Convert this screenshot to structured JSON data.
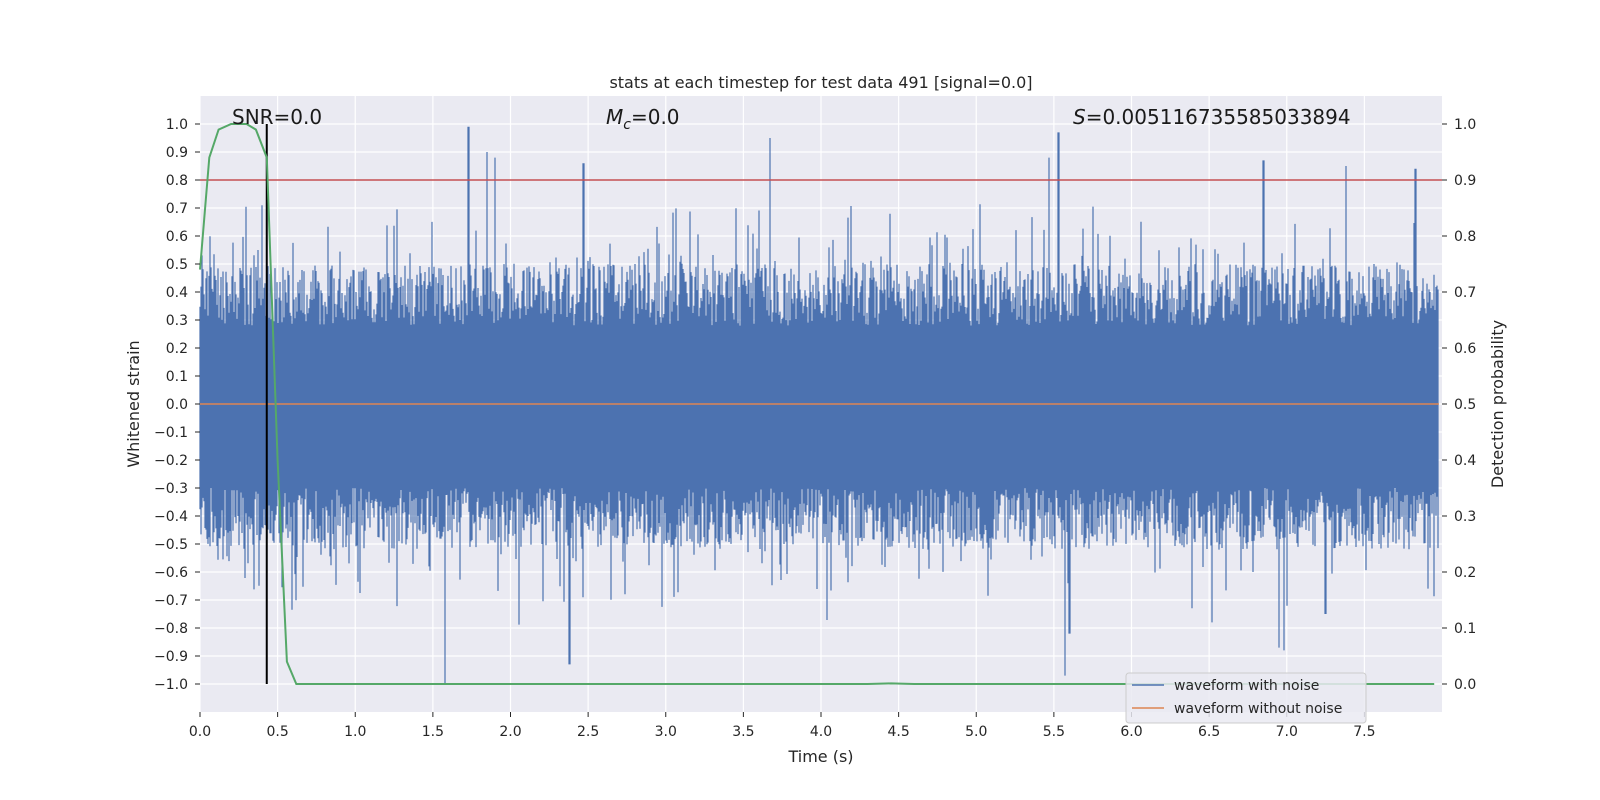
{
  "chart_data": {
    "type": "line",
    "title": "stats at each timestep for test data 491 [signal=0.0]",
    "xlabel": "Time (s)",
    "ylabel_left": "Whitened strain",
    "ylabel_right": "Detection probability",
    "xlim": [
      0.0,
      8.0
    ],
    "ylim_left": [
      -1.1,
      1.1
    ],
    "ylim_right": [
      -0.05,
      1.05
    ],
    "x_ticks": [
      "0.0",
      "0.5",
      "1.0",
      "1.5",
      "2.0",
      "2.5",
      "3.0",
      "3.5",
      "4.0",
      "4.5",
      "5.0",
      "5.5",
      "6.0",
      "6.5",
      "7.0",
      "7.5"
    ],
    "y_left_ticks": [
      "1.0",
      "0.9",
      "0.8",
      "0.7",
      "0.6",
      "0.5",
      "0.4",
      "0.3",
      "0.2",
      "0.1",
      "0.0",
      "−0.1",
      "−0.2",
      "−0.3",
      "−0.4",
      "−0.5",
      "−0.6",
      "−0.7",
      "−0.8",
      "−0.9",
      "−1.0"
    ],
    "y_right_ticks": [
      "1.0",
      "0.9",
      "0.8",
      "0.7",
      "0.6",
      "0.5",
      "0.4",
      "0.3",
      "0.2",
      "0.1",
      "0.0"
    ],
    "annotations": {
      "snr": "SNR=0.0",
      "mc_symbol": "M",
      "mc_sub": "c",
      "mc_value": "=0.0",
      "s_symbol": "S",
      "s_value": "=0.005116735585033894"
    },
    "threshold_line": {
      "y_right": 0.9,
      "color": "#c44e52"
    },
    "marker_line": {
      "x": 0.43,
      "y_from": -1.0,
      "y_to": 1.0,
      "color": "#000000"
    },
    "series": [
      {
        "name": "waveform with noise",
        "color": "#4c72b0",
        "kind": "noise",
        "amplitude_envelope": [
          -1.0,
          0.99
        ]
      },
      {
        "name": "waveform without noise",
        "color": "#dd8452",
        "kind": "flat",
        "value": 0.0
      },
      {
        "name": "detection probability",
        "color": "#55a868",
        "kind": "prob",
        "x": [
          0.0,
          0.06,
          0.12,
          0.2,
          0.3,
          0.36,
          0.43,
          0.5,
          0.56,
          0.62,
          0.7,
          1.0,
          2.0,
          3.0,
          4.0,
          4.3,
          4.45,
          4.6,
          5.0,
          6.0,
          7.0,
          7.95
        ],
        "y": [
          0.74,
          0.94,
          0.99,
          1.0,
          1.0,
          0.99,
          0.94,
          0.4,
          0.04,
          0.0,
          0.0,
          0.0,
          0.0,
          0.0,
          0.0,
          0.0,
          0.001,
          0.0,
          0.0,
          0.0,
          0.0,
          0.0
        ]
      }
    ],
    "legend": {
      "placement": "bottom-right",
      "entries": [
        "waveform with noise",
        "waveform without noise"
      ]
    },
    "grid": true
  }
}
